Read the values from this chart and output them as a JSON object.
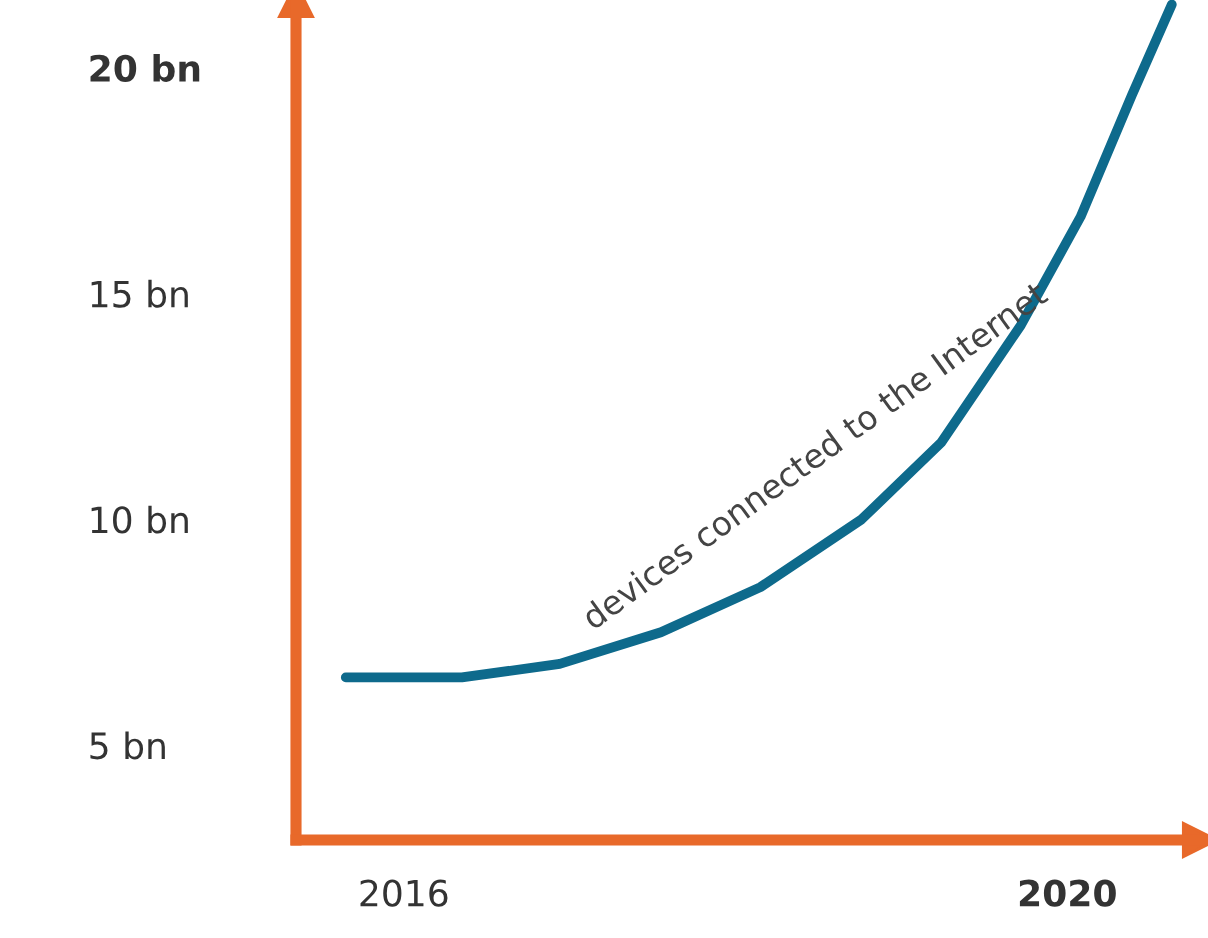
{
  "chart_data": {
    "type": "line",
    "x": [
      2015.65,
      2016.35,
      2016.94,
      2017.55,
      2018.15,
      2018.76,
      2019.24,
      2019.72,
      2020.08,
      2020.39,
      2020.63
    ],
    "series": [
      {
        "color": "#0e6a8c",
        "values": [
          6.5,
          6.5,
          6.8,
          7.5,
          8.5,
          10.0,
          11.7,
          14.3,
          16.7,
          19.4,
          21.4
        ]
      }
    ],
    "xlim": [
      2015.35,
      2020.8
    ],
    "ylim": [
      2.9,
      21.5
    ],
    "xticks": [
      2016,
      2020
    ],
    "yticks": [
      {
        "value": 5,
        "label": "5 bn"
      },
      {
        "value": 10,
        "label": "10 bn"
      },
      {
        "value": 15,
        "label": "15 bn"
      },
      {
        "value": 20,
        "label": "20 bn"
      }
    ],
    "annotations": [
      "devices connected to the Internet"
    ],
    "grid": false,
    "legend": false,
    "marker": "none",
    "line_style": "solid"
  }
}
